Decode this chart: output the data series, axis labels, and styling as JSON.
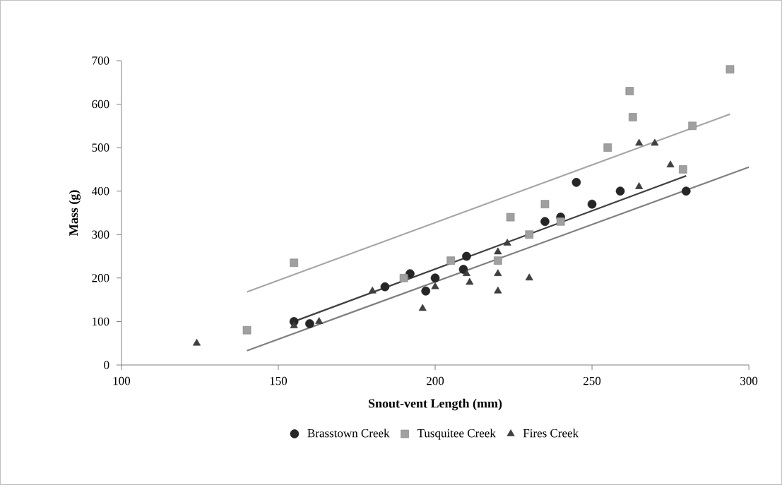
{
  "chart_data": {
    "type": "scatter",
    "xlabel": "Snout-vent Length (mm)",
    "ylabel": "Mass (g)",
    "xlim": [
      100,
      300
    ],
    "xticks": [
      100,
      150,
      200,
      250,
      300
    ],
    "ylim": [
      0,
      700
    ],
    "yticks": [
      0,
      100,
      200,
      300,
      400,
      500,
      600,
      700
    ],
    "grid": false,
    "legend": "bottom",
    "series": [
      {
        "name": "Brasstown Creek",
        "color": "#262626",
        "marker": "circle",
        "x": [
          155,
          160,
          184,
          192,
          197,
          200,
          209,
          210,
          235,
          240,
          245,
          250,
          259,
          280
        ],
        "values": [
          100,
          95,
          180,
          210,
          170,
          200,
          220,
          250,
          330,
          340,
          420,
          370,
          400,
          400
        ]
      },
      {
        "name": "Tusquitee Creek",
        "color": "#a0a0a0",
        "marker": "square",
        "x": [
          140,
          155,
          190,
          205,
          220,
          224,
          230,
          235,
          240,
          255,
          262,
          263,
          279,
          282,
          294
        ],
        "values": [
          80,
          235,
          200,
          240,
          240,
          340,
          300,
          370,
          330,
          500,
          630,
          570,
          450,
          550,
          680
        ]
      },
      {
        "name": "Fires Creek",
        "color": "#404040",
        "marker": "triangle",
        "x": [
          124,
          155,
          163,
          180,
          196,
          200,
          210,
          211,
          220,
          220,
          220,
          223,
          230,
          265,
          270,
          275,
          265
        ],
        "values": [
          50,
          90,
          100,
          170,
          130,
          180,
          210,
          190,
          260,
          210,
          170,
          280,
          200,
          510,
          510,
          460,
          410
        ]
      },
      {
        "type": "line",
        "color": "#404040",
        "marker": "none",
        "x": [
          155,
          280
        ],
        "values": [
          100,
          435
        ]
      },
      {
        "type": "line",
        "color": "#a6a6a6",
        "marker": "none",
        "x": [
          140,
          294
        ],
        "values": [
          168,
          577
        ]
      },
      {
        "type": "line",
        "color": "#7f7f7f",
        "marker": "none",
        "x": [
          140,
          300
        ],
        "values": [
          33,
          455
        ]
      }
    ]
  }
}
